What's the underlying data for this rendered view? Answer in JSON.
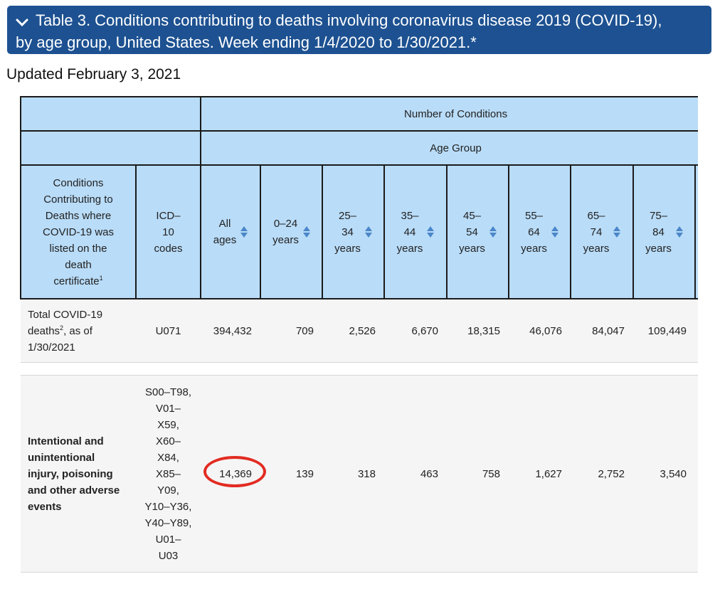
{
  "banner": {
    "line1": "Table 3. Conditions contributing to deaths involving coronavirus disease 2019 (COVID-19),",
    "line2": "by age group, United States. Week ending 1/4/2020 to 1/30/2021.*"
  },
  "updated": "Updated February 3, 2021",
  "table": {
    "band1": "Number of Conditions",
    "band2": "Age Group",
    "headers": {
      "conditions_l1": "Conditions",
      "conditions_l2": "Contributing to",
      "conditions_l3": "Deaths where",
      "conditions_l4": "COVID-19 was",
      "conditions_l5": "listed on the",
      "conditions_l6": "death",
      "conditions_l7": "certificate",
      "conditions_sup": "1",
      "icd_l1": "ICD–",
      "icd_l2": "10",
      "icd_l3": "codes",
      "ages": [
        {
          "l1": "All",
          "l2": "ages",
          "l3": ""
        },
        {
          "l1": "0–24",
          "l2": "years",
          "l3": ""
        },
        {
          "l1": "25–",
          "l2": "34",
          "l3": "years"
        },
        {
          "l1": "35–",
          "l2": "44",
          "l3": "years"
        },
        {
          "l1": "45–",
          "l2": "54",
          "l3": "years"
        },
        {
          "l1": "55–",
          "l2": "64",
          "l3": "years"
        },
        {
          "l1": "65–",
          "l2": "74",
          "l3": "years"
        },
        {
          "l1": "75–",
          "l2": "84",
          "l3": "years"
        }
      ]
    },
    "rows": [
      {
        "cond_a": "Total COVID-19",
        "cond_b": "deaths",
        "cond_sup": "2",
        "cond_c": ", as of",
        "cond_d": "1/30/2021",
        "icd": "U071",
        "values": [
          "394,432",
          "709",
          "2,526",
          "6,670",
          "18,315",
          "46,076",
          "84,047",
          "109,449"
        ]
      },
      {
        "cond_lines": [
          "Intentional and",
          "unintentional",
          "injury, poisoning",
          "and other adverse",
          "events"
        ],
        "icd_lines": [
          "S00–T98,",
          "V01–",
          "X59,",
          "X60–",
          "X84,",
          "X85–",
          "Y09,",
          "Y10–Y36,",
          "Y40–Y89,",
          "U01–",
          "U03"
        ],
        "values": [
          "14,369",
          "139",
          "318",
          "463",
          "758",
          "1,627",
          "2,752",
          "3,540"
        ]
      }
    ]
  },
  "accent": {
    "banner": "#1d5191",
    "header_bg": "#b9dcf8",
    "highlight_ring": "#e22b21"
  }
}
